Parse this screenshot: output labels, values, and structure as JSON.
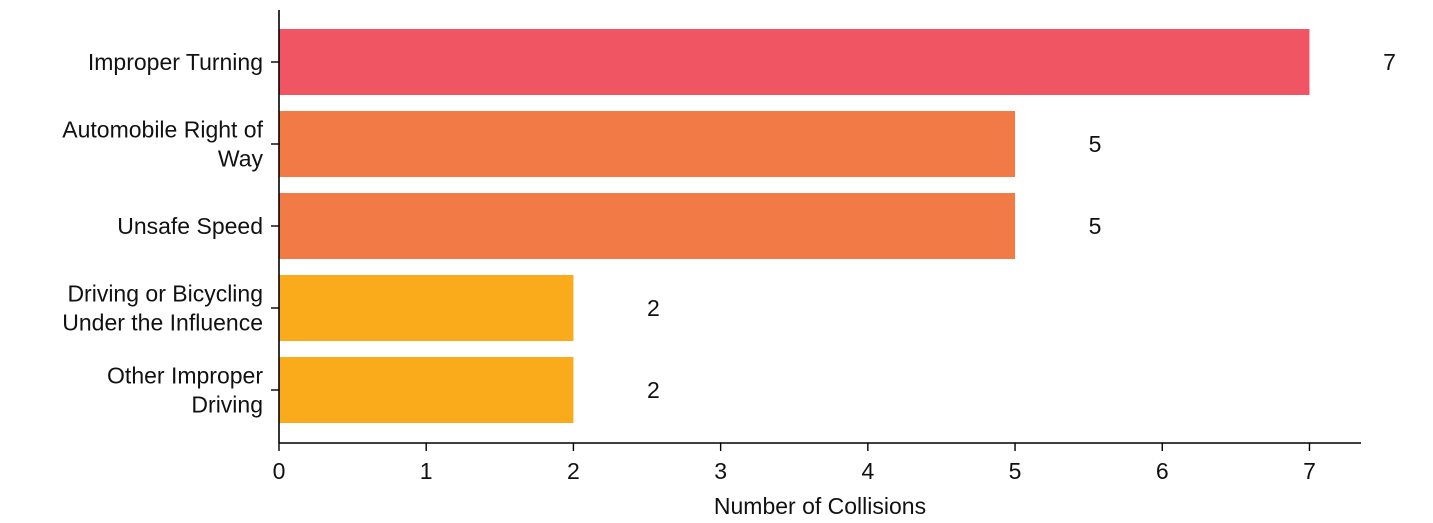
{
  "chart_data": {
    "type": "bar",
    "orientation": "horizontal",
    "title": "",
    "xlabel": "Number of Collisions",
    "ylabel": "",
    "xlim": [
      0,
      7.35
    ],
    "xticks": [
      0,
      1,
      2,
      3,
      4,
      5,
      6,
      7
    ],
    "grid": false,
    "legend": "none",
    "categories": [
      [
        "Improper Turning"
      ],
      [
        "Automobile Right of",
        "Way"
      ],
      [
        "Unsafe Speed"
      ],
      [
        "Driving or Bicycling",
        "Under the Influence"
      ],
      [
        "Other Improper",
        "Driving"
      ]
    ],
    "values": [
      7,
      5,
      5,
      2,
      2
    ],
    "data_labels": [
      "7",
      "5",
      "5",
      "2",
      "2"
    ],
    "colors": [
      "#ef5562",
      "#f27a46",
      "#f27a46",
      "#f9ab1b",
      "#f9ab1b"
    ]
  }
}
